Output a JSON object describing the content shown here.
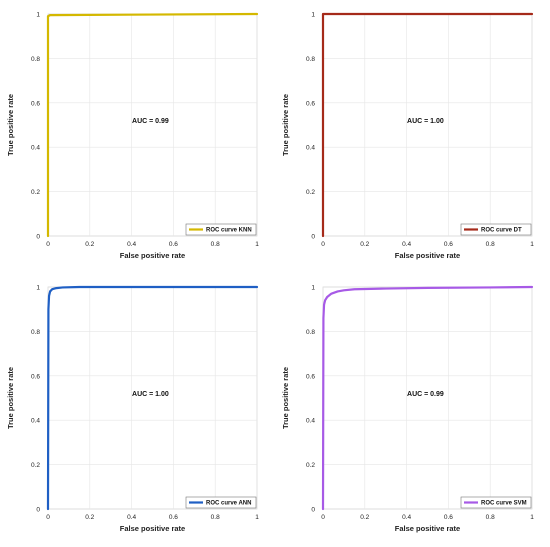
{
  "chart_data": [
    {
      "type": "line",
      "title": "",
      "xlabel": "False positive rate",
      "ylabel": "True positive rate",
      "xlim": [
        0,
        1
      ],
      "ylim": [
        0,
        1
      ],
      "xticks": [
        "0",
        "0.2",
        "0.4",
        "0.6",
        "0.8",
        "1"
      ],
      "yticks": [
        "0",
        "0.2",
        "0.4",
        "0.6",
        "0.8",
        "1"
      ],
      "grid": true,
      "legend_position": "bottom-right",
      "annotation": "AUC = 0.99",
      "series": [
        {
          "name": "ROC curve KNN",
          "color": "#d4b800",
          "x": [
            0,
            0,
            0.01,
            1
          ],
          "y": [
            0,
            0.99,
            0.995,
            1.0
          ]
        }
      ]
    },
    {
      "type": "line",
      "title": "",
      "xlabel": "False positive rate",
      "ylabel": "True positive rate",
      "xlim": [
        0,
        1
      ],
      "ylim": [
        0,
        1
      ],
      "xticks": [
        "0",
        "0.2",
        "0.4",
        "0.6",
        "0.8",
        "1"
      ],
      "yticks": [
        "0",
        "0.2",
        "0.4",
        "0.6",
        "0.8",
        "1"
      ],
      "grid": true,
      "legend_position": "bottom-right",
      "annotation": "AUC = 1.00",
      "series": [
        {
          "name": "ROC curve DT",
          "color": "#a52a1a",
          "x": [
            0,
            0,
            1
          ],
          "y": [
            0,
            1,
            1
          ]
        }
      ]
    },
    {
      "type": "line",
      "title": "",
      "xlabel": "False positive rate",
      "ylabel": "True positive rate",
      "xlim": [
        0,
        1
      ],
      "ylim": [
        0,
        1
      ],
      "xticks": [
        "0",
        "0.2",
        "0.4",
        "0.6",
        "0.8",
        "1"
      ],
      "yticks": [
        "0",
        "0.2",
        "0.4",
        "0.6",
        "0.8",
        "1"
      ],
      "grid": true,
      "legend_position": "bottom-right",
      "annotation": "AUC = 1.00",
      "series": [
        {
          "name": "ROC curve ANN",
          "color": "#1f5fc4",
          "x": [
            0,
            0.002,
            0.005,
            0.01,
            0.02,
            0.04,
            0.07,
            0.15,
            1
          ],
          "y": [
            0,
            0.9,
            0.96,
            0.98,
            0.99,
            0.995,
            0.998,
            1.0,
            1.0
          ]
        }
      ]
    },
    {
      "type": "line",
      "title": "",
      "xlabel": "False positive rate",
      "ylabel": "True positive rate",
      "xlim": [
        0,
        1
      ],
      "ylim": [
        0,
        1
      ],
      "xticks": [
        "0",
        "0.2",
        "0.4",
        "0.6",
        "0.8",
        "1"
      ],
      "yticks": [
        "0",
        "0.2",
        "0.4",
        "0.6",
        "0.8",
        "1"
      ],
      "grid": true,
      "legend_position": "bottom-right",
      "annotation": "AUC = 0.99",
      "series": [
        {
          "name": "ROC curve SVM",
          "color": "#a75ae6",
          "x": [
            0,
            0.002,
            0.005,
            0.01,
            0.02,
            0.04,
            0.07,
            0.1,
            0.15,
            0.3,
            0.5,
            0.8,
            1
          ],
          "y": [
            0,
            0.86,
            0.92,
            0.94,
            0.955,
            0.97,
            0.98,
            0.985,
            0.99,
            0.993,
            0.996,
            0.998,
            1.0
          ]
        }
      ]
    }
  ]
}
